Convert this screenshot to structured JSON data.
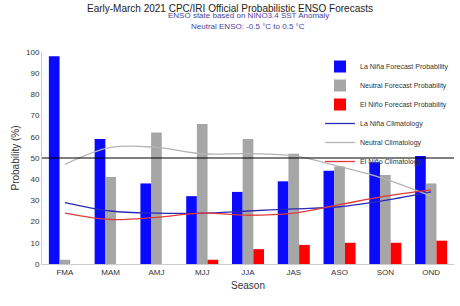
{
  "chart_data": {
    "type": "bar",
    "title": "Early-March 2021 CPC/IRI Official Probabilistic ENSO Forecasts",
    "subtitle": "ENSO state based on NINO3.4 SST Anomaly",
    "annotations": [
      "Neutral ENSO: -0.5 °C to 0.5 °C"
    ],
    "x_label": "Season",
    "y_label": "Probability (%)",
    "categories": [
      "FMA",
      "MAM",
      "AMJ",
      "MJJ",
      "JJA",
      "JAS",
      "ASO",
      "SON",
      "OND"
    ],
    "series": [
      {
        "name": "La Niña Forecast Probability",
        "type": "bar",
        "color": "#0a0aff",
        "values": [
          98,
          59,
          38,
          32,
          34,
          39,
          44,
          48,
          51
        ]
      },
      {
        "name": "Neutral Forecast Probability",
        "type": "bar",
        "color": "#a6a6a6",
        "values": [
          2,
          41,
          62,
          66,
          59,
          52,
          46,
          42,
          38
        ]
      },
      {
        "name": "El Niño Forecast Probability",
        "type": "bar",
        "color": "#ff0000",
        "values": [
          0,
          0,
          0,
          2,
          7,
          9,
          10,
          10,
          11
        ]
      },
      {
        "name": "La Niña Climatology",
        "type": "line",
        "line_style": "solid",
        "color": "#2a2ab8",
        "values": [
          29,
          25,
          24,
          24,
          25,
          26,
          27,
          30,
          34
        ]
      },
      {
        "name": "Neutral Climatology",
        "type": "line",
        "line_style": "solid",
        "color": "#b4b4b4",
        "values": [
          47,
          55,
          55,
          52,
          52,
          51,
          46,
          40,
          32
        ]
      },
      {
        "name": "El Niño Climatology",
        "type": "line",
        "line_style": "solid",
        "color": "#e23a3a",
        "values": [
          24,
          21,
          22,
          24,
          23,
          24,
          28,
          32,
          35
        ]
      }
    ],
    "hline": 50,
    "ylim": [
      0,
      100
    ],
    "yticks": [
      0,
      10,
      20,
      30,
      40,
      50,
      60,
      70,
      80,
      90,
      100
    ],
    "grid": false,
    "legend": "upper right"
  }
}
